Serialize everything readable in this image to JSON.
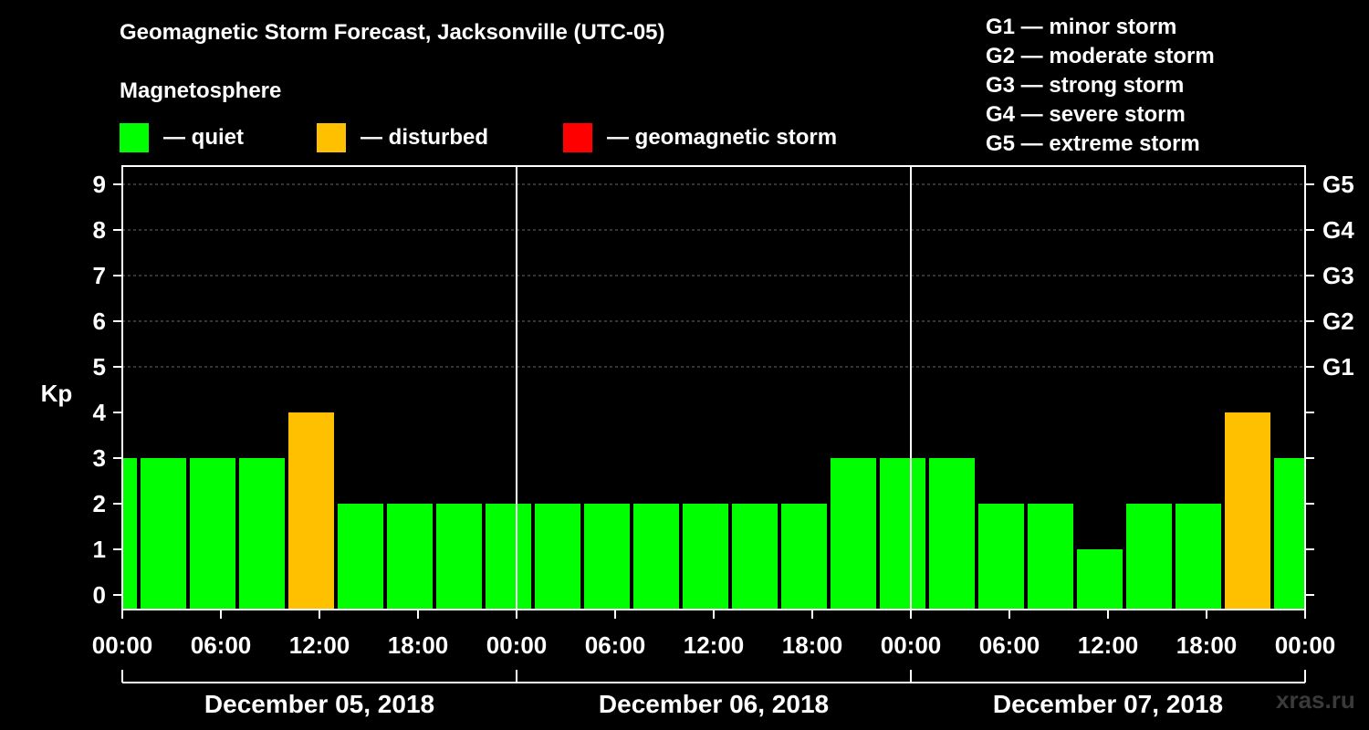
{
  "chart_data": {
    "type": "bar",
    "title": "Geomagnetic Storm Forecast, Jacksonville (UTC-05)",
    "legend_title": "Magnetosphere",
    "legend": [
      {
        "label": "— quiet",
        "color": "#00ff00"
      },
      {
        "label": "— disturbed",
        "color": "#ffc000"
      },
      {
        "label": "— geomagnetic storm",
        "color": "#ff0000"
      }
    ],
    "storm_scale": [
      "G1 — minor storm",
      "G2 — moderate storm",
      "G3 — strong storm",
      "G4 — severe storm",
      "G5 — extreme storm"
    ],
    "ylabel": "Kp",
    "ylim": [
      0,
      9
    ],
    "y_ticks": [
      "0",
      "1",
      "2",
      "3",
      "4",
      "5",
      "6",
      "7",
      "8",
      "9"
    ],
    "right_ticks": [
      {
        "kp": 5,
        "label": "G1"
      },
      {
        "kp": 6,
        "label": "G2"
      },
      {
        "kp": 7,
        "label": "G3"
      },
      {
        "kp": 8,
        "label": "G4"
      },
      {
        "kp": 9,
        "label": "G5"
      }
    ],
    "x_range_hours": [
      0,
      72
    ],
    "x_ticks": [
      "00:00",
      "06:00",
      "12:00",
      "18:00",
      "00:00",
      "06:00",
      "12:00",
      "18:00",
      "00:00",
      "06:00",
      "12:00",
      "18:00",
      "00:00"
    ],
    "day_labels": [
      "December 05, 2018",
      "December 06, 2018",
      "December 07, 2018"
    ],
    "series": [
      {
        "name": "Kp",
        "start_hours": [
          -2,
          1,
          4,
          7,
          10,
          13,
          16,
          19,
          22,
          25,
          28,
          31,
          34,
          37,
          40,
          43,
          46,
          49,
          52,
          55,
          58,
          61,
          64,
          67,
          70
        ],
        "values": [
          3,
          3,
          3,
          3,
          4,
          2,
          2,
          2,
          2,
          2,
          2,
          2,
          2,
          2,
          2,
          3,
          3,
          3,
          2,
          2,
          1,
          2,
          2,
          4,
          3
        ],
        "colors": [
          "#00ff00",
          "#00ff00",
          "#00ff00",
          "#00ff00",
          "#ffc000",
          "#00ff00",
          "#00ff00",
          "#00ff00",
          "#00ff00",
          "#00ff00",
          "#00ff00",
          "#00ff00",
          "#00ff00",
          "#00ff00",
          "#00ff00",
          "#00ff00",
          "#00ff00",
          "#00ff00",
          "#00ff00",
          "#00ff00",
          "#00ff00",
          "#00ff00",
          "#00ff00",
          "#ffc000",
          "#00ff00"
        ]
      }
    ]
  },
  "watermark": "xras.ru"
}
